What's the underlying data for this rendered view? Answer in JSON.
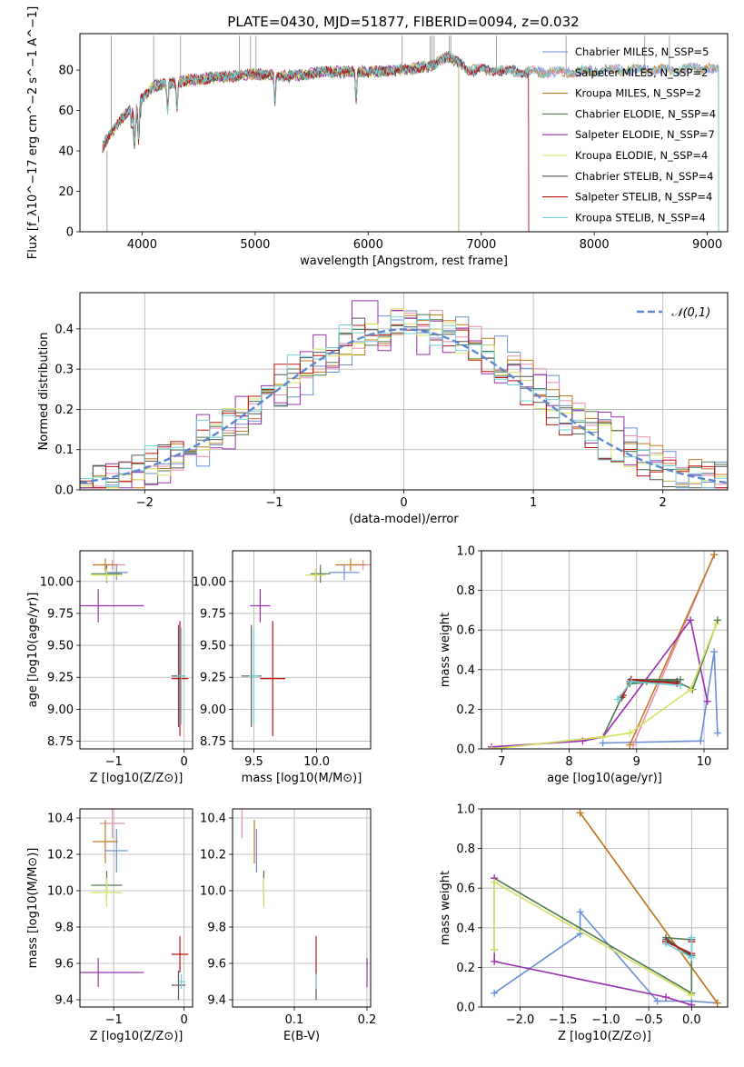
{
  "figure_title": "PLATE=0430, MJD=51877, FIBERID=0094, z=0.032",
  "chart_data": [
    {
      "id": "spectrum",
      "type": "line",
      "xlabel": "wavelength [Angstrom, rest frame]",
      "ylabel": "Flux [f_λ10^−17 erg cm^−2 s^−1 A^−1]",
      "xlim": [
        3450,
        9180
      ],
      "ylim": [
        0,
        98
      ],
      "xticks": [
        4000,
        5000,
        6000,
        7000,
        8000,
        9000
      ],
      "yticks": [
        0,
        20,
        40,
        60,
        80
      ],
      "legend_position": "top-right",
      "grid": false,
      "series": [
        {
          "name": "Chabrier MILES, N_SSP=5",
          "color": "#6a8fd6",
          "end": 9100
        },
        {
          "name": "Salpeter MILES, N_SSP=2",
          "color": "#e88fb0",
          "end": 9100
        },
        {
          "name": "Kroupa MILES, N_SSP=2",
          "color": "#c07a20",
          "end": 9100
        },
        {
          "name": "Chabrier ELODIE, N_SSP=4",
          "color": "#4f7a4f",
          "end": 6800
        },
        {
          "name": "Salpeter ELODIE, N_SSP=7",
          "color": "#9a30b0",
          "end": 6800
        },
        {
          "name": "Kroupa ELODIE, N_SSP=4",
          "color": "#d8e060",
          "end": 6800
        },
        {
          "name": "Chabrier STELIB, N_SSP=4",
          "color": "#555555",
          "end": 7420
        },
        {
          "name": "Salpeter STELIB, N_SSP=4",
          "color": "#c01010",
          "end": 7420
        },
        {
          "name": "Kroupa STELIB, N_SSP=4",
          "color": "#70d0d8",
          "end": 9100
        }
      ],
      "continuum": [
        [
          3650,
          42
        ],
        [
          3800,
          55
        ],
        [
          3950,
          63
        ],
        [
          4100,
          72
        ],
        [
          4300,
          74
        ],
        [
          4600,
          76
        ],
        [
          5000,
          78
        ],
        [
          5300,
          77
        ],
        [
          5600,
          79
        ],
        [
          6000,
          79
        ],
        [
          6300,
          80
        ],
        [
          6560,
          82
        ],
        [
          6700,
          87
        ],
        [
          6900,
          80
        ],
        [
          7100,
          80
        ],
        [
          7400,
          79
        ],
        [
          7800,
          79
        ],
        [
          8200,
          80
        ],
        [
          8600,
          80
        ],
        [
          9000,
          81
        ],
        [
          9100,
          80
        ]
      ],
      "emission_lines": [
        3727,
        4102,
        4340,
        4861,
        4959,
        5007,
        6300,
        6548,
        6563,
        6583,
        6717,
        6731,
        7135,
        7751,
        8446,
        8665
      ],
      "absorption_lines": [
        3934,
        3969,
        4226,
        4308,
        5175,
        5893
      ]
    },
    {
      "id": "residuals",
      "type": "line",
      "xlabel": "(data-model)/error",
      "ylabel": "Normed distribution",
      "xlim": [
        -2.5,
        2.5
      ],
      "ylim": [
        0,
        0.49
      ],
      "xticks": [
        -2,
        -1,
        0,
        1,
        2
      ],
      "yticks": [
        0.0,
        0.1,
        0.2,
        0.3,
        0.4
      ],
      "grid": true,
      "legend_position": "top-right",
      "legend": "𝒩(0,1)",
      "gaussian_color": "#5b87cc"
    },
    {
      "id": "age_vs_Z",
      "type": "scatter",
      "xlabel": "Z [log10(Z/Z⊙)]",
      "ylabel": "age  [log10(age/yr)]",
      "xlim": [
        -1.48,
        0.12
      ],
      "ylim": [
        8.69,
        10.24
      ],
      "xticks": [
        -1,
        0
      ],
      "yticks": [
        8.75,
        9.0,
        9.25,
        9.5,
        9.75,
        10.0
      ],
      "grid": true,
      "points": [
        {
          "c": 0,
          "x": -0.96,
          "y": 10.07,
          "xerr": 0.16,
          "yerr": 0.06
        },
        {
          "c": 1,
          "x": -1.02,
          "y": 10.13,
          "xerr": 0.18,
          "yerr": 0.04
        },
        {
          "c": 2,
          "x": -1.12,
          "y": 10.13,
          "xerr": 0.18,
          "yerr": 0.05
        },
        {
          "c": 3,
          "x": -1.1,
          "y": 10.06,
          "xerr": 0.22,
          "yerr": 0.07
        },
        {
          "c": 4,
          "x": -1.22,
          "y": 9.81,
          "xerr": 0.65,
          "yerr": 0.13
        },
        {
          "c": 5,
          "x": -1.1,
          "y": 10.05,
          "xerr": 0.22,
          "yerr": 0.05
        },
        {
          "c": 6,
          "x": -0.08,
          "y": 9.26,
          "xerr": 0.1,
          "yerr": 0.4
        },
        {
          "c": 7,
          "x": -0.06,
          "y": 9.24,
          "xerr": 0.12,
          "yerr": 0.45
        },
        {
          "c": 8,
          "x": -0.04,
          "y": 9.26,
          "xerr": 0.06,
          "yerr": 0.38
        }
      ]
    },
    {
      "id": "age_vs_mass",
      "type": "scatter",
      "xlabel": "mass [log10(M/M⊙)]",
      "ylabel": "",
      "xlim": [
        9.33,
        10.43
      ],
      "ylim": [
        8.69,
        10.24
      ],
      "xticks": [
        9.5,
        10.0
      ],
      "yticks": [
        8.75,
        9.0,
        9.25,
        9.5,
        9.75,
        10.0
      ],
      "grid": true,
      "points": [
        {
          "c": 0,
          "x": 10.22,
          "y": 10.07,
          "xerr": 0.12,
          "yerr": 0.06
        },
        {
          "c": 1,
          "x": 10.37,
          "y": 10.13,
          "xerr": 0.08,
          "yerr": 0.04
        },
        {
          "c": 2,
          "x": 10.27,
          "y": 10.13,
          "xerr": 0.12,
          "yerr": 0.05
        },
        {
          "c": 3,
          "x": 10.03,
          "y": 10.06,
          "xerr": 0.08,
          "yerr": 0.07
        },
        {
          "c": 4,
          "x": 9.55,
          "y": 9.81,
          "xerr": 0.08,
          "yerr": 0.13
        },
        {
          "c": 5,
          "x": 9.99,
          "y": 10.05,
          "xerr": 0.08,
          "yerr": 0.05
        },
        {
          "c": 6,
          "x": 9.48,
          "y": 9.26,
          "xerr": 0.08,
          "yerr": 0.4
        },
        {
          "c": 7,
          "x": 9.65,
          "y": 9.24,
          "xerr": 0.1,
          "yerr": 0.45
        },
        {
          "c": 8,
          "x": 9.5,
          "y": 9.26,
          "xerr": 0.04,
          "yerr": 0.38
        }
      ]
    },
    {
      "id": "massweight_vs_age",
      "type": "line",
      "xlabel": "age  [log10(age/yr)]",
      "ylabel": "mass weight",
      "xlim": [
        6.7,
        10.35
      ],
      "ylim": [
        0.0,
        1.0
      ],
      "xticks": [
        7,
        8,
        9,
        10
      ],
      "yticks": [
        0.0,
        0.2,
        0.4,
        0.6,
        0.8,
        1.0
      ],
      "grid": true,
      "series": [
        {
          "c": 0,
          "x": [
            8.5,
            9.95,
            10.15,
            10.2
          ],
          "y": [
            0.03,
            0.04,
            0.49,
            0.08
          ]
        },
        {
          "c": 1,
          "x": [
            8.95,
            10.15
          ],
          "y": [
            0.02,
            0.98
          ]
        },
        {
          "c": 2,
          "x": [
            8.9,
            10.15
          ],
          "y": [
            0.02,
            0.98
          ]
        },
        {
          "c": 3,
          "x": [
            6.85,
            8.5,
            8.78,
            8.92,
            9.65,
            9.15,
            8.9,
            9.6,
            9.83,
            10.2
          ],
          "y": [
            0.0,
            0.06,
            0.26,
            0.35,
            0.35,
            0.34,
            0.33,
            0.34,
            0.3,
            0.65
          ]
        },
        {
          "c": 4,
          "x": [
            6.85,
            8.2,
            8.5,
            9.8,
            10.05
          ],
          "y": [
            0.01,
            0.04,
            0.06,
            0.65,
            0.24
          ]
        },
        {
          "c": 5,
          "x": [
            6.85,
            8.5,
            8.9,
            9.8,
            10.18
          ],
          "y": [
            0.0,
            0.06,
            0.08,
            0.3,
            0.63
          ]
        },
        {
          "c": 6,
          "x": [
            8.78,
            8.9,
            9.6
          ],
          "y": [
            0.26,
            0.34,
            0.34
          ]
        },
        {
          "c": 7,
          "x": [
            8.8,
            8.92,
            9.6
          ],
          "y": [
            0.27,
            0.35,
            0.33
          ]
        },
        {
          "c": 8,
          "x": [
            8.72,
            8.92,
            9.65
          ],
          "y": [
            0.25,
            0.34,
            0.32
          ]
        }
      ]
    },
    {
      "id": "mass_vs_Z",
      "type": "scatter",
      "xlabel": "Z [log10(Z/Z⊙)]",
      "ylabel": "mass [log10(M/M⊙)]",
      "xlim": [
        -1.48,
        0.12
      ],
      "ylim": [
        9.36,
        10.45
      ],
      "xticks": [
        -1,
        0
      ],
      "yticks": [
        9.4,
        9.6,
        9.8,
        10.0,
        10.2,
        10.4
      ],
      "grid": true,
      "points": [
        {
          "c": 0,
          "x": -0.96,
          "y": 10.22,
          "xerr": 0.16,
          "yerr": 0.12
        },
        {
          "c": 1,
          "x": -1.02,
          "y": 10.37,
          "xerr": 0.18,
          "yerr": 0.08
        },
        {
          "c": 2,
          "x": -1.12,
          "y": 10.27,
          "xerr": 0.18,
          "yerr": 0.12
        },
        {
          "c": 3,
          "x": -1.1,
          "y": 10.03,
          "xerr": 0.22,
          "yerr": 0.08
        },
        {
          "c": 4,
          "x": -1.22,
          "y": 9.55,
          "xerr": 0.65,
          "yerr": 0.08
        },
        {
          "c": 5,
          "x": -1.1,
          "y": 9.99,
          "xerr": 0.22,
          "yerr": 0.08
        },
        {
          "c": 6,
          "x": -0.08,
          "y": 9.48,
          "xerr": 0.1,
          "yerr": 0.08
        },
        {
          "c": 7,
          "x": -0.06,
          "y": 9.65,
          "xerr": 0.12,
          "yerr": 0.1
        },
        {
          "c": 8,
          "x": -0.04,
          "y": 9.5,
          "xerr": 0.06,
          "yerr": 0.04
        }
      ]
    },
    {
      "id": "mass_vs_ebv",
      "type": "scatter",
      "xlabel": "E(B-V)",
      "ylabel": "",
      "xlim": [
        0.015,
        0.205
      ],
      "ylim": [
        9.36,
        10.45
      ],
      "xticks": [
        0.1,
        0.2
      ],
      "yticks": [
        9.4,
        9.6,
        9.8,
        10.0,
        10.2,
        10.4
      ],
      "grid": true,
      "points": [
        {
          "c": 0,
          "x": 0.048,
          "y": 10.22,
          "xerr": 0,
          "yerr": 0.12
        },
        {
          "c": 1,
          "x": 0.028,
          "y": 10.37,
          "xerr": 0,
          "yerr": 0.08
        },
        {
          "c": 2,
          "x": 0.045,
          "y": 10.27,
          "xerr": 0,
          "yerr": 0.12
        },
        {
          "c": 3,
          "x": 0.058,
          "y": 10.03,
          "xerr": 0,
          "yerr": 0.08
        },
        {
          "c": 4,
          "x": 0.2,
          "y": 9.55,
          "xerr": 0,
          "yerr": 0.08
        },
        {
          "c": 5,
          "x": 0.058,
          "y": 9.99,
          "xerr": 0,
          "yerr": 0.08
        },
        {
          "c": 6,
          "x": 0.13,
          "y": 9.48,
          "xerr": 0,
          "yerr": 0.08
        },
        {
          "c": 7,
          "x": 0.13,
          "y": 9.65,
          "xerr": 0,
          "yerr": 0.1
        },
        {
          "c": 8,
          "x": 0.13,
          "y": 9.5,
          "xerr": 0,
          "yerr": 0.04
        }
      ]
    },
    {
      "id": "massweight_vs_Z",
      "type": "line",
      "xlabel": "Z [log10(Z/Z⊙)]",
      "ylabel": "mass weight",
      "xlim": [
        -2.45,
        0.42
      ],
      "ylim": [
        0.0,
        1.0
      ],
      "xticks": [
        -2.0,
        -1.5,
        -1.0,
        -0.5,
        0.0
      ],
      "yticks": [
        0.0,
        0.2,
        0.4,
        0.6,
        0.8,
        1.0
      ],
      "grid": true,
      "series": [
        {
          "c": 0,
          "x": [
            -2.3,
            -1.3,
            -1.3,
            -0.4,
            0.0,
            0.3
          ],
          "y": [
            0.07,
            0.37,
            0.48,
            0.03,
            0.03,
            0.02
          ]
        },
        {
          "c": 1,
          "x": [
            -1.3,
            0.3
          ],
          "y": [
            0.98,
            0.02
          ]
        },
        {
          "c": 2,
          "x": [
            -1.3,
            0.3
          ],
          "y": [
            0.98,
            0.02
          ]
        },
        {
          "c": 3,
          "x": [
            -2.3,
            -2.3,
            0.0,
            0.0,
            -0.3,
            0.0
          ],
          "y": [
            0.29,
            0.65,
            0.07,
            0.25,
            0.35,
            0.34
          ]
        },
        {
          "c": 4,
          "x": [
            -2.3,
            -2.3,
            -0.3,
            0.0
          ],
          "y": [
            0.65,
            0.23,
            0.05,
            0.01
          ]
        },
        {
          "c": 5,
          "x": [
            -2.3,
            -2.3,
            0.0,
            0.0
          ],
          "y": [
            0.29,
            0.63,
            0.06,
            0.06
          ]
        },
        {
          "c": 6,
          "x": [
            -0.3,
            0.0,
            0.0
          ],
          "y": [
            0.34,
            0.26,
            0.34
          ]
        },
        {
          "c": 7,
          "x": [
            -0.3,
            0.0,
            0.0
          ],
          "y": [
            0.33,
            0.27,
            0.33
          ]
        },
        {
          "c": 8,
          "x": [
            -0.3,
            0.0,
            0.0
          ],
          "y": [
            0.32,
            0.25,
            0.35
          ]
        }
      ]
    }
  ]
}
